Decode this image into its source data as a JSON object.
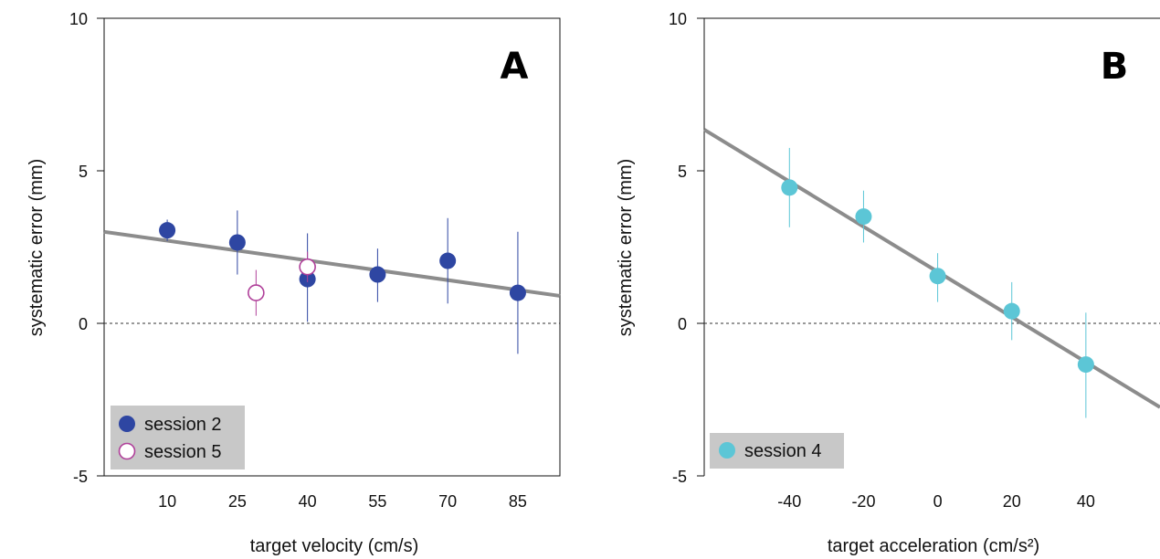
{
  "chart_data": [
    {
      "type": "scatter",
      "panel_label": "A",
      "xlabel": "target velocity (cm/s)",
      "ylabel": "systematic error (mm)",
      "xlim": [
        -3.5,
        94
      ],
      "ylim": [
        -5,
        10
      ],
      "xticks": [
        10,
        25,
        40,
        55,
        70,
        85
      ],
      "yticks": [
        -5,
        0,
        5,
        10
      ],
      "reference_line_y": 0,
      "legend_position": "bottom-left",
      "colors": {
        "session 2": "#2e46a2",
        "session 5": "#b0409a",
        "fit": "#8c8c8c"
      },
      "fit_line": {
        "x": [
          -3.5,
          94
        ],
        "y": [
          3.0,
          0.9
        ]
      },
      "series": [
        {
          "name": "session 2",
          "marker": "filled",
          "color": "#2e46a2",
          "x": [
            10,
            25,
            40,
            55,
            70,
            85
          ],
          "y": [
            3.05,
            2.65,
            1.45,
            1.6,
            2.05,
            1.0
          ],
          "err_low": [
            2.7,
            1.6,
            0.05,
            0.7,
            0.65,
            -1.0
          ],
          "err_high": [
            3.4,
            3.7,
            2.95,
            2.45,
            3.45,
            3.0
          ]
        },
        {
          "name": "session 5",
          "marker": "open",
          "color": "#b0409a",
          "x": [
            29,
            40
          ],
          "y": [
            1.0,
            1.85
          ],
          "err_low": [
            0.25,
            1.35
          ],
          "err_high": [
            1.75,
            2.35
          ]
        }
      ]
    },
    {
      "type": "scatter",
      "panel_label": "B",
      "xlabel": "target acceleration (cm/s²)",
      "ylabel": "systematic error (mm)",
      "xlim": [
        -63,
        60
      ],
      "ylim": [
        -5,
        10
      ],
      "xticks": [
        -40,
        -20,
        0,
        20,
        40
      ],
      "yticks": [
        -5,
        0,
        5,
        10
      ],
      "reference_line_y": 0,
      "legend_position": "bottom-left",
      "colors": {
        "session 4": "#5cc6d6",
        "fit": "#8c8c8c"
      },
      "fit_line": {
        "x": [
          -63,
          60
        ],
        "y": [
          6.35,
          -2.75
        ]
      },
      "series": [
        {
          "name": "session 4",
          "marker": "filled",
          "color": "#5cc6d6",
          "x": [
            -40,
            -20,
            0,
            20,
            40
          ],
          "y": [
            4.45,
            3.5,
            1.55,
            0.4,
            -1.35
          ],
          "err_low": [
            3.15,
            2.65,
            0.7,
            -0.55,
            -3.1
          ],
          "err_high": [
            5.75,
            4.35,
            2.3,
            1.35,
            0.35
          ]
        }
      ]
    }
  ]
}
